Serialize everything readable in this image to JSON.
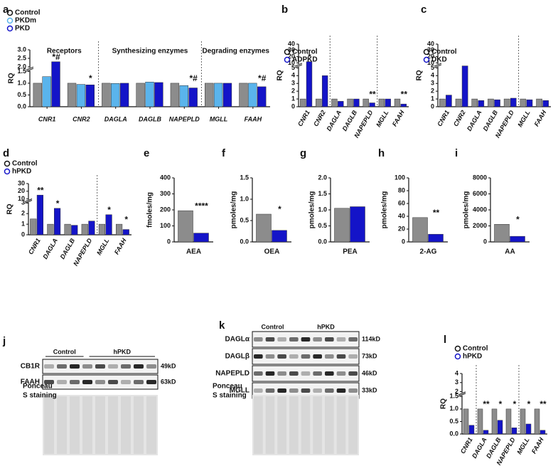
{
  "chart_data": [
    {
      "type": "bar",
      "panel": "a",
      "ylabel": "RQ",
      "sections": [
        "Receptors",
        "Synthesizing enzymes",
        "Degrading enzymes"
      ],
      "categories": [
        "CNR1",
        "CNR2",
        "DAGLA",
        "DAGLB",
        "NAPEPLD",
        "MGLL",
        "FAAH"
      ],
      "series": [
        {
          "name": "Control",
          "color": "#8c8c8c",
          "values": [
            1.0,
            1.0,
            1.0,
            1.0,
            1.0,
            1.0,
            1.0
          ]
        },
        {
          "name": "PKDm",
          "color": "#5ab4ec",
          "values": [
            1.28,
            0.95,
            0.99,
            1.05,
            0.9,
            1.0,
            1.0
          ]
        },
        {
          "name": "PKD",
          "color": "#1414c8",
          "values": [
            2.3,
            0.93,
            1.0,
            1.03,
            0.8,
            1.0,
            0.85
          ]
        }
      ],
      "annotations": [
        "*#",
        "*",
        null,
        null,
        "*#",
        null,
        "*#"
      ],
      "ylim": [
        0,
        3
      ],
      "ybreak": [
        1.5,
        2.0
      ],
      "yticks": [
        {
          "value": 0,
          "label": "0.0"
        },
        {
          "value": 0.5,
          "label": "0.5"
        },
        {
          "value": 1,
          "label": "1.0"
        },
        {
          "value": 1.5,
          "label": "1.5"
        },
        {
          "value": 2,
          "label": "2.0"
        },
        {
          "value": 2.5,
          "label": "2.5"
        },
        {
          "value": 3,
          "label": "3.0"
        }
      ]
    },
    {
      "type": "bar",
      "panel": "b",
      "ylabel": "RQ",
      "categories": [
        "CNR1",
        "CNR2",
        "DAGLA",
        "DAGLB",
        "NAPEPLD",
        "MGLL",
        "FAAH"
      ],
      "series": [
        {
          "name": "Control",
          "color": "#8c8c8c",
          "values": [
            1.0,
            1.0,
            1.0,
            1.0,
            1.0,
            1.0,
            1.0
          ]
        },
        {
          "name": "ADPKD",
          "color": "#1414c8",
          "values": [
            12,
            4,
            0.7,
            1.0,
            0.5,
            1.0,
            0.35
          ]
        }
      ],
      "annotations": [
        "*",
        null,
        null,
        null,
        "**",
        null,
        "**"
      ],
      "ylim": [
        0,
        40
      ],
      "ybreak": [
        5,
        10
      ],
      "yticks": [
        0,
        1,
        2,
        3,
        4,
        5,
        10,
        20,
        30,
        40
      ]
    },
    {
      "type": "bar",
      "panel": "c",
      "ylabel": "RQ",
      "categories": [
        "CNR1",
        "CNR2",
        "DAGLA",
        "DAGLB",
        "NAPEPLD",
        "MGLL",
        "FAAH"
      ],
      "series": [
        {
          "name": "Control",
          "color": "#8c8c8c",
          "values": [
            1.0,
            1.0,
            1.0,
            1.0,
            1.0,
            1.0,
            1.0
          ]
        },
        {
          "name": "DKD",
          "color": "#1414c8",
          "values": [
            1.5,
            7,
            0.8,
            0.9,
            1.1,
            0.9,
            0.8
          ]
        }
      ],
      "ylim": [
        0,
        40
      ],
      "ybreak": [
        5,
        10
      ],
      "yticks": [
        0,
        1,
        2,
        3,
        4,
        5,
        10,
        20,
        30,
        40
      ]
    },
    {
      "type": "bar",
      "panel": "d",
      "ylabel": "RQ",
      "categories": [
        "CNR1",
        "DAGLA",
        "DAGLB",
        "NAPEPLD",
        "MGLL",
        "FAAH"
      ],
      "series": [
        {
          "name": "Control",
          "color": "#8c8c8c",
          "values": [
            1.5,
            1.0,
            1.0,
            1.0,
            1.0,
            1.0
          ]
        },
        {
          "name": "hPKD",
          "color": "#1414c8",
          "values": [
            15,
            2.5,
            0.9,
            1.3,
            1.9,
            0.5
          ]
        }
      ],
      "annotations": [
        "**",
        "*",
        null,
        null,
        "*",
        "*"
      ],
      "ylim": [
        0,
        30
      ],
      "ybreak": [
        3,
        10
      ],
      "yticks": [
        0,
        1,
        2,
        3,
        10,
        20,
        30
      ]
    },
    {
      "type": "bar",
      "panel": "e",
      "ylabel": "fmoles/mg",
      "categories": [
        "AEA"
      ],
      "series": [
        {
          "color": "#8c8c8c",
          "values": [
            195
          ]
        },
        {
          "color": "#1414c8",
          "values": [
            55
          ]
        }
      ],
      "annotations": [
        "****"
      ],
      "ylim": [
        0,
        400
      ],
      "yticks": [
        0,
        100,
        200,
        300,
        400
      ]
    },
    {
      "type": "bar",
      "panel": "f",
      "ylabel": "pmoles/mg",
      "categories": [
        "OEA"
      ],
      "series": [
        {
          "color": "#8c8c8c",
          "values": [
            0.65
          ]
        },
        {
          "color": "#1414c8",
          "values": [
            0.27
          ]
        }
      ],
      "annotations": [
        "*"
      ],
      "ylim": [
        0,
        1.5
      ],
      "yticks": [
        {
          "value": 0,
          "label": "0.0"
        },
        {
          "value": 0.5,
          "label": "0.5"
        },
        {
          "value": 1,
          "label": "1.0"
        },
        {
          "value": 1.5,
          "label": "1.5"
        }
      ]
    },
    {
      "type": "bar",
      "panel": "g",
      "ylabel": "pmoles/mg",
      "categories": [
        "PEA"
      ],
      "series": [
        {
          "color": "#8c8c8c",
          "values": [
            1.05
          ]
        },
        {
          "color": "#1414c8",
          "values": [
            1.1
          ]
        }
      ],
      "ylim": [
        0,
        2
      ],
      "yticks": [
        {
          "value": 0,
          "label": "0.0"
        },
        {
          "value": 0.5,
          "label": "0.5"
        },
        {
          "value": 1,
          "label": "1.0"
        },
        {
          "value": 1.5,
          "label": "1.5"
        },
        {
          "value": 2,
          "label": "2.0"
        }
      ]
    },
    {
      "type": "bar",
      "panel": "h",
      "ylabel": "pmoles/mg",
      "categories": [
        "2-AG"
      ],
      "series": [
        {
          "color": "#8c8c8c",
          "values": [
            38
          ]
        },
        {
          "color": "#1414c8",
          "values": [
            12
          ]
        }
      ],
      "annotations": [
        "**"
      ],
      "ylim": [
        0,
        100
      ],
      "yticks": [
        0,
        20,
        40,
        60,
        80,
        100
      ]
    },
    {
      "type": "bar",
      "panel": "i",
      "ylabel": "pmoles/mg",
      "categories": [
        "AA"
      ],
      "series": [
        {
          "color": "#8c8c8c",
          "values": [
            2200
          ]
        },
        {
          "color": "#1414c8",
          "values": [
            700
          ]
        }
      ],
      "annotations": [
        "*"
      ],
      "ylim": [
        0,
        8000
      ],
      "yticks": [
        0,
        2000,
        4000,
        6000,
        8000
      ]
    },
    {
      "type": "bar",
      "panel": "l",
      "ylabel": "RQ",
      "categories": [
        "CNR1",
        "DAGLA",
        "DAGLB",
        "NAPEPLD",
        "MGLL",
        "FAAH"
      ],
      "series": [
        {
          "name": "Control",
          "color": "#8c8c8c",
          "values": [
            1.0,
            1.0,
            1.0,
            1.0,
            1.0,
            1.0
          ]
        },
        {
          "name": "hPKD",
          "color": "#1414c8",
          "values": [
            0.35,
            0.15,
            0.55,
            0.25,
            0.4,
            0.15
          ]
        }
      ],
      "annotations": [
        null,
        "**",
        "*",
        "*",
        "*",
        "**"
      ],
      "ylim": [
        0,
        4
      ],
      "ybreak": [
        1.5,
        2
      ],
      "yticks": [
        {
          "value": 0,
          "label": "0.0"
        },
        {
          "value": 0.5,
          "label": "0.5"
        },
        {
          "value": 1,
          "label": "1.0"
        },
        {
          "value": 1.5,
          "label": "1.5"
        },
        2,
        3,
        4
      ]
    }
  ],
  "blots": [
    {
      "panel": "j",
      "groups": [
        "Control",
        "hPKD"
      ],
      "rows": [
        {
          "label": "CB1R",
          "size": "49kD"
        },
        {
          "label": "FAAH",
          "size": "63kD"
        }
      ],
      "stain": [
        "Ponceau",
        "S staining"
      ]
    },
    {
      "panel": "k",
      "groups": [
        "Control",
        "hPKD"
      ],
      "rows": [
        {
          "label": "DAGLα",
          "size": "114kD"
        },
        {
          "label": "DAGLβ",
          "size": "73kD"
        },
        {
          "label": "NAPEPLD",
          "size": "46kD"
        },
        {
          "label": "MGLL",
          "size": "33kD"
        }
      ],
      "stain": [
        "Ponceau",
        "S staining"
      ]
    }
  ]
}
